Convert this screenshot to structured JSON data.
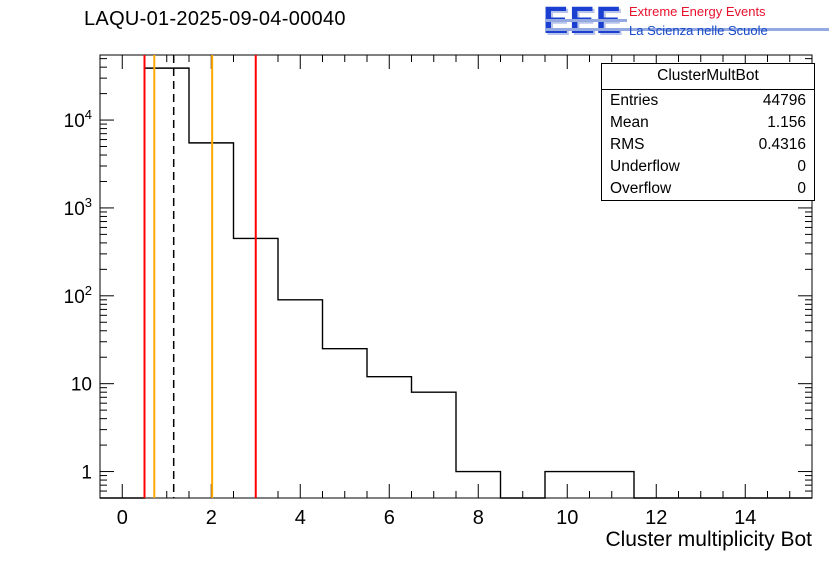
{
  "title": "LAQU-01-2025-09-04-00040",
  "logo": {
    "eee": "EEE",
    "line1": "Extreme Energy Events",
    "line2": "La Scienza nelle Scuole",
    "eee_color": "#1a3fd1",
    "line1_color": "#e8112d",
    "line2_color": "#1648c8"
  },
  "stats": {
    "header": "ClusterMultBot",
    "rows": [
      {
        "label": "Entries",
        "value": "44796"
      },
      {
        "label": "Mean",
        "value": "1.156"
      },
      {
        "label": "RMS",
        "value": "0.4316"
      },
      {
        "label": "Underflow",
        "value": "0"
      },
      {
        "label": "Overflow",
        "value": "0"
      }
    ]
  },
  "chart_data": {
    "type": "bar",
    "subtype": "step-histogram-log-y",
    "title": "LAQU-01-2025-09-04-00040",
    "xlabel": "Cluster multiplicity Bot",
    "ylabel": "",
    "x_range": [
      -0.5,
      15.5
    ],
    "y_scale": "log",
    "y_range": [
      0.5,
      55000
    ],
    "bin_width": 1,
    "bin_centers": [
      0,
      1,
      2,
      3,
      4,
      5,
      6,
      7,
      8,
      9,
      10,
      11,
      12,
      13,
      14,
      15
    ],
    "counts": [
      0,
      39000,
      5500,
      450,
      90,
      25,
      12,
      8,
      1,
      0,
      1,
      1,
      0,
      0,
      0,
      0
    ],
    "x_major_ticks": [
      0,
      2,
      4,
      6,
      8,
      10,
      12,
      14
    ],
    "x_minor_step": 0.5,
    "y_major_ticks": [
      {
        "value": 1,
        "label": "1"
      },
      {
        "value": 10,
        "label": "10"
      },
      {
        "value": 100,
        "label": "10",
        "exp": "2"
      },
      {
        "value": 1000,
        "label": "10",
        "exp": "3"
      },
      {
        "value": 10000,
        "label": "10",
        "exp": "4"
      }
    ],
    "line_color": "#000000",
    "grid": false,
    "legend": "stats-box-top-right",
    "vlines": [
      {
        "x": 0.5,
        "color": "#ff0000",
        "style": "solid"
      },
      {
        "x": 0.72,
        "color": "#ffaa00",
        "style": "solid"
      },
      {
        "x": 1.156,
        "color": "#000000",
        "style": "dashed"
      },
      {
        "x": 2.02,
        "color": "#ffaa00",
        "style": "solid"
      },
      {
        "x": 3.0,
        "color": "#ff0000",
        "style": "solid"
      }
    ]
  }
}
